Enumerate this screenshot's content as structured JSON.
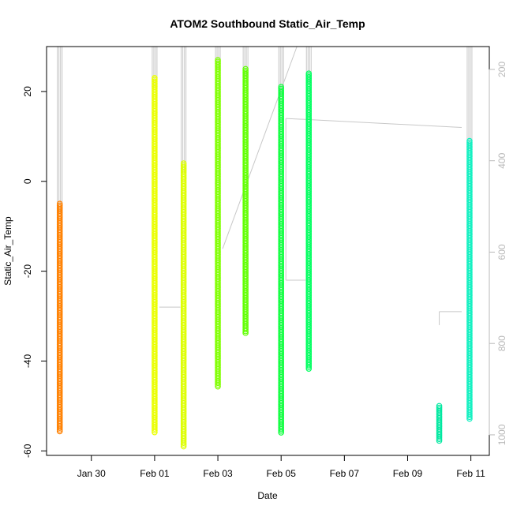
{
  "chart_data": {
    "type": "scatter",
    "title": "ATOM2 Southbound Static_Air_Temp",
    "xlabel": "Date",
    "ylabel": "Static_Air_Temp",
    "xlim": [
      "2017-01-28T14:00",
      "2017-02-11T14:00"
    ],
    "ylim": [
      -61,
      30
    ],
    "x_ticks": [
      {
        "label": "Jan 30",
        "date": "2017-01-30"
      },
      {
        "label": "Feb 01",
        "date": "2017-02-01"
      },
      {
        "label": "Feb 03",
        "date": "2017-02-03"
      },
      {
        "label": "Feb 05",
        "date": "2017-02-05"
      },
      {
        "label": "Feb 07",
        "date": "2017-02-07"
      },
      {
        "label": "Feb 09",
        "date": "2017-02-09"
      },
      {
        "label": "Feb 11",
        "date": "2017-02-11"
      }
    ],
    "y_ticks": [
      -60,
      -40,
      -20,
      0,
      20
    ],
    "right_axis": {
      "ylim": [
        1045,
        150
      ],
      "ticks": [
        200,
        400,
        600,
        800,
        1000
      ],
      "color": "#b8b8b8"
    },
    "grid": false,
    "series": [
      {
        "date": "2017-01-29T00:00",
        "ymin": -56,
        "ymax": -5,
        "color": "#ff8000"
      },
      {
        "date": "2017-02-01T00:00",
        "ymin": -56,
        "ymax": 23,
        "color": "#eaff00"
      },
      {
        "date": "2017-02-01T22:00",
        "ymin": -59,
        "ymax": 4,
        "color": "#ddff00"
      },
      {
        "date": "2017-02-03T00:00",
        "ymin": -46,
        "ymax": 27,
        "color": "#80ff00"
      },
      {
        "date": "2017-02-03T21:00",
        "ymin": -34,
        "ymax": 25,
        "color": "#60ff00"
      },
      {
        "date": "2017-02-05T00:00",
        "ymin": -56,
        "ymax": 21,
        "color": "#10ff40"
      },
      {
        "date": "2017-02-05T21:00",
        "ymin": -42,
        "ymax": 24,
        "color": "#00ff60"
      },
      {
        "date": "2017-02-10T00:00",
        "ymin": -58,
        "ymax": -50,
        "color": "#00e8a0"
      },
      {
        "date": "2017-02-10T23:00",
        "ymin": -53,
        "ymax": 9,
        "color": "#10f0c0"
      }
    ]
  }
}
